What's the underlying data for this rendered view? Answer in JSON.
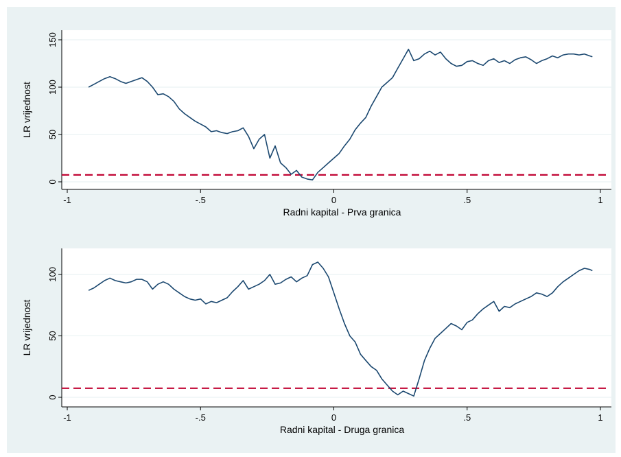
{
  "chart_data": [
    {
      "type": "line",
      "title": "",
      "xlabel": "Radni kapital - Prva granica",
      "ylabel": "LR vrijednost",
      "xlim": [
        -1,
        1
      ],
      "ylim": [
        0,
        150
      ],
      "xticks": [
        -1,
        -0.5,
        0,
        0.5,
        1
      ],
      "xtick_labels": [
        "-1",
        "-.5",
        "0",
        ".5",
        "1"
      ],
      "yticks": [
        0,
        50,
        100,
        150
      ],
      "ytick_labels": [
        "0",
        "50",
        "100",
        "150"
      ],
      "grid": "horizontal",
      "legend": "none",
      "line_color": "#1a476f",
      "threshold": 7.35,
      "threshold_color": "#c10534",
      "series": [
        {
          "x": [
            -0.92,
            -0.9,
            -0.88,
            -0.86,
            -0.84,
            -0.82,
            -0.8,
            -0.78,
            -0.76,
            -0.74,
            -0.72,
            -0.7,
            -0.68,
            -0.66,
            -0.64,
            -0.62,
            -0.6,
            -0.58,
            -0.56,
            -0.54,
            -0.52,
            -0.5,
            -0.48,
            -0.46,
            -0.44,
            -0.42,
            -0.4,
            -0.38,
            -0.36,
            -0.34,
            -0.32,
            -0.3,
            -0.28,
            -0.26,
            -0.24,
            -0.22,
            -0.2,
            -0.18,
            -0.16,
            -0.14,
            -0.12,
            -0.1,
            -0.08,
            -0.06,
            -0.04,
            -0.02,
            0.0,
            0.02,
            0.04,
            0.06,
            0.08,
            0.1,
            0.12,
            0.14,
            0.16,
            0.18,
            0.2,
            0.22,
            0.24,
            0.26,
            0.28,
            0.3,
            0.32,
            0.34,
            0.36,
            0.38,
            0.4,
            0.42,
            0.44,
            0.46,
            0.48,
            0.5,
            0.52,
            0.54,
            0.56,
            0.58,
            0.6,
            0.62,
            0.64,
            0.66,
            0.68,
            0.7,
            0.72,
            0.74,
            0.76,
            0.78,
            0.8,
            0.82,
            0.84,
            0.86,
            0.88,
            0.9,
            0.92,
            0.94,
            0.96,
            0.97
          ],
          "y": [
            100,
            103,
            106,
            109,
            111,
            109,
            106,
            104,
            106,
            108,
            110,
            106,
            100,
            92,
            93,
            90,
            85,
            77,
            72,
            68,
            64,
            61,
            58,
            53,
            54,
            52,
            51,
            53,
            54,
            57,
            48,
            35,
            45,
            50,
            25,
            38,
            20,
            15,
            8,
            12,
            5,
            3,
            2,
            10,
            15,
            20,
            25,
            30,
            38,
            45,
            55,
            62,
            68,
            80,
            90,
            100,
            105,
            110,
            120,
            130,
            140,
            128,
            130,
            135,
            138,
            134,
            137,
            130,
            125,
            122,
            123,
            127,
            128,
            125,
            123,
            128,
            130,
            126,
            128,
            125,
            129,
            131,
            132,
            129,
            125,
            128,
            130,
            133,
            131,
            134,
            135,
            135,
            134,
            135,
            133,
            132
          ]
        }
      ]
    },
    {
      "type": "line",
      "title": "",
      "xlabel": "Radni kapital - Druga granica",
      "ylabel": "LR vrijednost",
      "xlim": [
        -1,
        1
      ],
      "ylim": [
        0,
        110
      ],
      "xticks": [
        -1,
        -0.5,
        0,
        0.5,
        1
      ],
      "xtick_labels": [
        "-1",
        "-.5",
        "0",
        ".5",
        "1"
      ],
      "yticks": [
        0,
        50,
        100
      ],
      "ytick_labels": [
        "0",
        "50",
        "100"
      ],
      "grid": "horizontal",
      "legend": "none",
      "line_color": "#1a476f",
      "threshold": 7.35,
      "threshold_color": "#c10534",
      "series": [
        {
          "x": [
            -0.92,
            -0.9,
            -0.88,
            -0.86,
            -0.84,
            -0.82,
            -0.8,
            -0.78,
            -0.76,
            -0.74,
            -0.72,
            -0.7,
            -0.68,
            -0.66,
            -0.64,
            -0.62,
            -0.6,
            -0.58,
            -0.56,
            -0.54,
            -0.52,
            -0.5,
            -0.48,
            -0.46,
            -0.44,
            -0.42,
            -0.4,
            -0.38,
            -0.36,
            -0.34,
            -0.32,
            -0.3,
            -0.28,
            -0.26,
            -0.24,
            -0.22,
            -0.2,
            -0.18,
            -0.16,
            -0.14,
            -0.12,
            -0.1,
            -0.08,
            -0.06,
            -0.04,
            -0.02,
            0.0,
            0.02,
            0.04,
            0.06,
            0.08,
            0.1,
            0.12,
            0.14,
            0.16,
            0.18,
            0.2,
            0.22,
            0.24,
            0.26,
            0.28,
            0.3,
            0.32,
            0.34,
            0.36,
            0.38,
            0.4,
            0.42,
            0.44,
            0.46,
            0.48,
            0.5,
            0.52,
            0.54,
            0.56,
            0.58,
            0.6,
            0.62,
            0.64,
            0.66,
            0.68,
            0.7,
            0.72,
            0.74,
            0.76,
            0.78,
            0.8,
            0.82,
            0.84,
            0.86,
            0.88,
            0.9,
            0.92,
            0.94,
            0.96,
            0.97
          ],
          "y": [
            87,
            89,
            92,
            95,
            97,
            95,
            94,
            93,
            94,
            96,
            96,
            94,
            88,
            92,
            94,
            92,
            88,
            85,
            82,
            80,
            79,
            80,
            76,
            78,
            77,
            79,
            81,
            86,
            90,
            95,
            88,
            90,
            92,
            95,
            100,
            92,
            93,
            96,
            98,
            94,
            97,
            99,
            108,
            110,
            105,
            98,
            85,
            72,
            60,
            50,
            45,
            35,
            30,
            25,
            22,
            15,
            10,
            5,
            2,
            5,
            3,
            1,
            15,
            30,
            40,
            48,
            52,
            56,
            60,
            58,
            55,
            61,
            63,
            68,
            72,
            75,
            78,
            70,
            74,
            73,
            76,
            78,
            80,
            82,
            85,
            84,
            82,
            85,
            90,
            94,
            97,
            100,
            103,
            105,
            104,
            103
          ]
        }
      ]
    }
  ]
}
